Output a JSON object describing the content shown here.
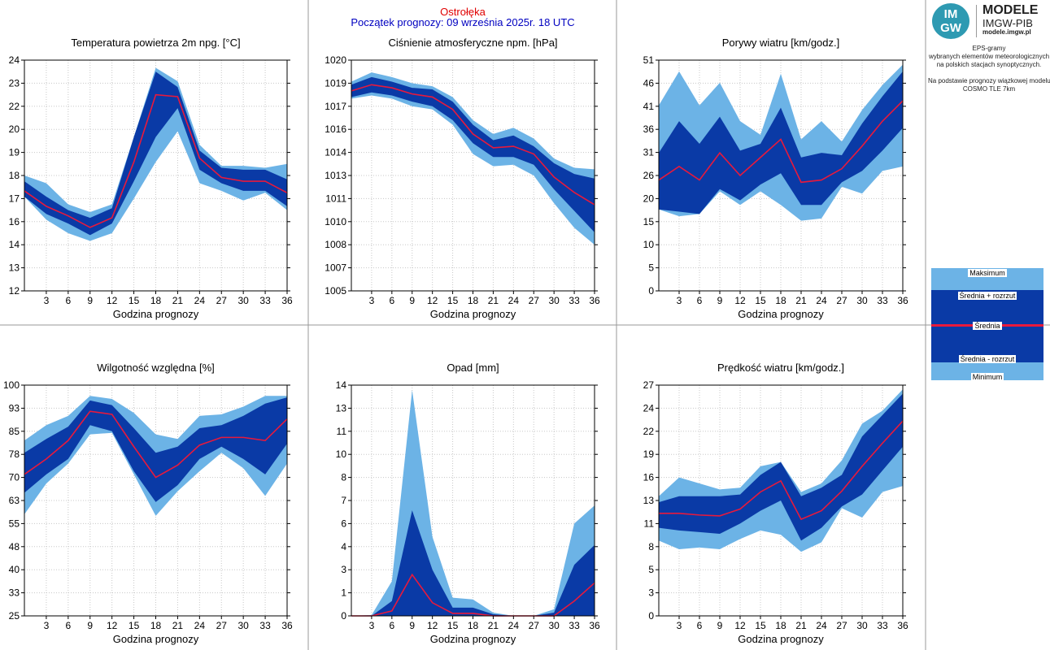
{
  "header": {
    "station": "Ostrołęka",
    "forecast_start": "Początek prognozy: 09 września 2025r. 18 UTC"
  },
  "logo": {
    "circle_text_top": "IM",
    "circle_text_bottom": "GW",
    "title": "MODELE",
    "subtitle": "IMGW-PIB",
    "url": "modele.imgw.pl"
  },
  "description": {
    "lines": [
      "EPS-gramy",
      "wybranych elementów meteorologicznych",
      "na polskich stacjach  synoptycznych.",
      "",
      "Na podstawie prognozy wiązkowej modelu",
      "COSMO TLE 7km"
    ]
  },
  "legend": {
    "max": "Maksimum",
    "mean_plus": "Średnia + rozrzut",
    "mean": "Średnia",
    "mean_minus": "Średnia - rozrzut",
    "min": "Minimum"
  },
  "colors": {
    "minmax_band": "#6cb3e6",
    "spread_band": "#0a3aa6",
    "mean_line": "#e8193c",
    "grid": "#c8c8c8"
  },
  "chart_data": [
    {
      "type": "area",
      "title": "Temperatura powietrza 2m npg. [°C]",
      "xlabel": "Godzina prognozy",
      "x": [
        0,
        3,
        6,
        9,
        12,
        15,
        18,
        21,
        24,
        27,
        30,
        33,
        36
      ],
      "xticks": [
        "3",
        "6",
        "9",
        "12",
        "15",
        "18",
        "21",
        "24",
        "27",
        "30",
        "33",
        "36"
      ],
      "ylim": [
        12,
        24
      ],
      "yticks": [
        "12",
        "13",
        "14",
        "16",
        "17",
        "18",
        "19",
        "20",
        "22",
        "23",
        "24"
      ],
      "max": [
        18.0,
        17.6,
        16.5,
        16.1,
        16.5,
        20.0,
        23.6,
        22.9,
        19.6,
        18.5,
        18.5,
        18.4,
        18.6
      ],
      "plus": [
        17.7,
        16.9,
        16.2,
        15.8,
        16.3,
        20.0,
        23.4,
        22.6,
        19.3,
        18.4,
        18.3,
        18.3,
        17.8
      ],
      "mean": [
        17.2,
        16.4,
        15.9,
        15.3,
        15.8,
        18.7,
        22.2,
        22.1,
        18.9,
        17.9,
        17.7,
        17.7,
        17.1
      ],
      "minus": [
        16.9,
        16.0,
        15.5,
        14.9,
        15.5,
        17.7,
        20.0,
        21.5,
        18.3,
        17.6,
        17.2,
        17.2,
        16.4
      ],
      "min": [
        16.9,
        15.7,
        15.0,
        14.6,
        15.0,
        16.8,
        18.7,
        20.3,
        17.6,
        17.2,
        16.7,
        17.1,
        16.2
      ]
    },
    {
      "type": "area",
      "title": "Ciśnienie atmosferyczne npm. [hPa]",
      "xlabel": "Godzina prognozy",
      "x": [
        0,
        3,
        6,
        9,
        12,
        15,
        18,
        21,
        24,
        27,
        30,
        33,
        36
      ],
      "xticks": [
        "3",
        "6",
        "9",
        "12",
        "15",
        "18",
        "21",
        "24",
        "27",
        "30",
        "33",
        "36"
      ],
      "ylim": [
        1005,
        1020
      ],
      "yticks": [
        "1005",
        "1007",
        "1008",
        "1010",
        "1011",
        "1013",
        "1014",
        "1016",
        "1017",
        "1019",
        "1020"
      ],
      "max": [
        1018.6,
        1019.2,
        1018.9,
        1018.5,
        1018.3,
        1017.6,
        1016.1,
        1015.2,
        1015.6,
        1014.9,
        1013.6,
        1013.0,
        1012.9
      ],
      "plus": [
        1018.4,
        1018.9,
        1018.6,
        1018.2,
        1018.1,
        1017.3,
        1015.8,
        1014.8,
        1015.1,
        1014.4,
        1013.3,
        1012.6,
        1012.3
      ],
      "mean": [
        1018.0,
        1018.4,
        1018.2,
        1017.8,
        1017.6,
        1016.8,
        1015.2,
        1014.3,
        1014.4,
        1013.9,
        1012.4,
        1011.4,
        1010.6
      ],
      "minus": [
        1017.6,
        1017.9,
        1017.7,
        1017.3,
        1017.0,
        1016.1,
        1014.6,
        1013.7,
        1013.7,
        1013.2,
        1011.6,
        1010.2,
        1008.8
      ],
      "min": [
        1017.5,
        1017.7,
        1017.5,
        1017.0,
        1016.8,
        1015.8,
        1013.9,
        1013.1,
        1013.2,
        1012.5,
        1010.7,
        1009.1,
        1008.0
      ]
    },
    {
      "type": "area",
      "title": "Porywy wiatru [km/godz.]",
      "xlabel": "Godzina prognozy",
      "x": [
        0,
        3,
        6,
        9,
        12,
        15,
        18,
        21,
        24,
        27,
        30,
        33,
        36
      ],
      "xticks": [
        "3",
        "6",
        "9",
        "12",
        "15",
        "18",
        "21",
        "24",
        "27",
        "30",
        "33",
        "36"
      ],
      "ylim": [
        0,
        51
      ],
      "yticks": [
        "0",
        "5",
        "10",
        "15",
        "20",
        "26",
        "31",
        "36",
        "41",
        "46",
        "51"
      ],
      "max": [
        41.0,
        48.5,
        41.0,
        46.0,
        37.5,
        34.5,
        48.0,
        33.5,
        37.5,
        33.0,
        40.0,
        45.5,
        50.0
      ],
      "plus": [
        30.5,
        37.5,
        32.5,
        38.5,
        31.0,
        32.5,
        40.5,
        29.5,
        30.5,
        30.0,
        37.0,
        43.0,
        48.5
      ],
      "mean": [
        24.5,
        27.5,
        24.5,
        30.5,
        25.5,
        29.5,
        33.5,
        24.0,
        24.5,
        27.0,
        32.0,
        37.5,
        42.0
      ],
      "minus": [
        18.0,
        17.5,
        17.0,
        22.5,
        20.0,
        23.5,
        26.0,
        19.0,
        19.0,
        24.0,
        26.5,
        31.0,
        36.0
      ],
      "min": [
        18.0,
        16.5,
        17.0,
        22.0,
        19.0,
        22.0,
        19.0,
        15.5,
        16.0,
        23.0,
        21.5,
        26.5,
        27.5
      ]
    },
    {
      "type": "area",
      "title": "Wilgotność względna [%]",
      "xlabel": "Godzina prognozy",
      "x": [
        0,
        3,
        6,
        9,
        12,
        15,
        18,
        21,
        24,
        27,
        30,
        33,
        36
      ],
      "xticks": [
        "3",
        "6",
        "9",
        "12",
        "15",
        "18",
        "21",
        "24",
        "27",
        "30",
        "33",
        "36"
      ],
      "ylim": [
        25,
        100
      ],
      "yticks": [
        "25",
        "33",
        "40",
        "48",
        "55",
        "63",
        "70",
        "78",
        "85",
        "93",
        "100"
      ],
      "max": [
        82.0,
        87.0,
        90.0,
        96.5,
        95.5,
        91.0,
        84.0,
        82.5,
        90.0,
        90.5,
        93.0,
        96.5,
        96.5
      ],
      "plus": [
        78.0,
        82.5,
        86.5,
        95.0,
        93.5,
        86.0,
        78.0,
        80.0,
        86.0,
        87.0,
        90.0,
        94.0,
        96.0
      ],
      "mean": [
        71.0,
        76.0,
        82.0,
        91.5,
        90.5,
        80.0,
        70.0,
        74.0,
        80.5,
        83.0,
        83.0,
        82.0,
        89.0
      ],
      "minus": [
        65.0,
        71.0,
        76.0,
        87.0,
        85.0,
        72.0,
        62.0,
        67.5,
        76.0,
        80.0,
        76.0,
        71.0,
        81.0
      ],
      "min": [
        58.0,
        68.0,
        74.5,
        84.0,
        84.5,
        71.0,
        57.5,
        65.5,
        72.0,
        78.0,
        73.0,
        64.0,
        74.5
      ]
    },
    {
      "type": "area",
      "title": "Opad [mm]",
      "xlabel": "Godzina prognozy",
      "x": [
        0,
        3,
        6,
        9,
        12,
        15,
        18,
        21,
        24,
        27,
        30,
        33,
        36
      ],
      "xticks": [
        "3",
        "6",
        "9",
        "12",
        "15",
        "18",
        "21",
        "24",
        "27",
        "30",
        "33",
        "36"
      ],
      "ylim": [
        0,
        14
      ],
      "yticks": [
        "0",
        "1",
        "3",
        "4",
        "6",
        "7",
        "8",
        "10",
        "11",
        "13",
        "14"
      ],
      "max": [
        0,
        0.05,
        2.1,
        13.7,
        4.8,
        1.1,
        1.0,
        0.2,
        0,
        0,
        0.4,
        5.6,
        6.7
      ],
      "plus": [
        0,
        0,
        0.9,
        6.4,
        2.8,
        0.5,
        0.5,
        0.1,
        0,
        0,
        0.2,
        3.1,
        4.3
      ],
      "mean": [
        0,
        0,
        0.3,
        2.5,
        0.8,
        0.15,
        0.15,
        0,
        0,
        0,
        0,
        0.9,
        2.0
      ],
      "minus": [
        0,
        0,
        0,
        0,
        0,
        0,
        0,
        0,
        0,
        0,
        0,
        0,
        0
      ],
      "min": [
        0,
        0,
        0,
        0,
        0,
        0,
        0,
        0,
        0,
        0,
        0,
        0,
        0
      ]
    },
    {
      "type": "area",
      "title": "Prędkość wiatru [km/godz.]",
      "xlabel": "Godzina prognozy",
      "x": [
        0,
        3,
        6,
        9,
        12,
        15,
        18,
        21,
        24,
        27,
        30,
        33,
        36
      ],
      "xticks": [
        "3",
        "6",
        "9",
        "12",
        "15",
        "18",
        "21",
        "24",
        "27",
        "30",
        "33",
        "36"
      ],
      "ylim": [
        0,
        27
      ],
      "yticks": [
        "0",
        "3",
        "5",
        "8",
        "11",
        "13",
        "16",
        "19",
        "22",
        "24",
        "27"
      ],
      "max": [
        14.0,
        16.2,
        15.5,
        14.8,
        15.0,
        17.5,
        18.0,
        14.5,
        15.5,
        18.2,
        22.5,
        24.0,
        26.5
      ],
      "plus": [
        13.3,
        14.0,
        14.0,
        14.0,
        14.2,
        16.5,
        18.0,
        14.0,
        15.0,
        16.5,
        21.0,
        23.5,
        26.0
      ],
      "mean": [
        12.0,
        12.0,
        11.8,
        11.7,
        12.5,
        14.5,
        15.8,
        11.3,
        12.3,
        14.6,
        17.5,
        20.2,
        22.8
      ],
      "minus": [
        10.3,
        10.0,
        9.8,
        9.6,
        10.8,
        12.3,
        13.5,
        8.8,
        10.3,
        12.8,
        14.2,
        17.0,
        19.8
      ],
      "min": [
        8.8,
        7.8,
        8.0,
        7.8,
        9.0,
        10.0,
        9.5,
        7.5,
        8.6,
        12.6,
        11.5,
        14.5,
        15.2
      ]
    }
  ]
}
